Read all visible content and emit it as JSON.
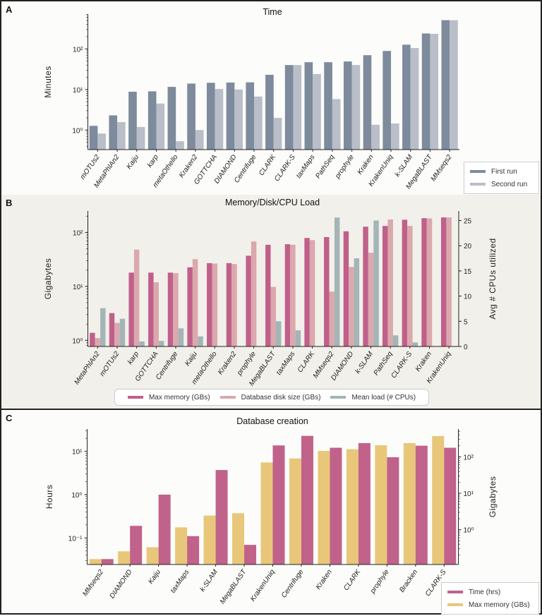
{
  "chart_data": [
    {
      "panel_label": "A",
      "type": "bar",
      "title": "Time",
      "ylabel": "Minutes",
      "yscale": "log",
      "ylim": [
        0.33,
        720
      ],
      "yticks": [
        {
          "value": 1,
          "label": "10⁰"
        },
        {
          "value": 10,
          "label": "10¹"
        },
        {
          "value": 100,
          "label": "10²"
        }
      ],
      "grid": false,
      "legend": "bottom-right",
      "categories": [
        "mOTUs2",
        "MetaPhlAn2",
        "Kaiju",
        "karp",
        "metaOthello",
        "Kraken2",
        "GOTTCHA",
        "DIAMOND",
        "Centrifuge",
        "CLARK",
        "CLARK-S",
        "taxMaps",
        "PathSeq",
        "prophyle",
        "Kraken",
        "KrakenUniq",
        "k-SLAM",
        "MegaBLAST",
        "MMseqs2"
      ],
      "series": [
        {
          "name": "First run",
          "axis": "left",
          "color": "#7d8b9c",
          "values": [
            1.27,
            2.3,
            8.8,
            9.0,
            11.6,
            14,
            14.6,
            14.8,
            15,
            23,
            40,
            47,
            47,
            49,
            70,
            89,
            127,
            240,
            510
          ]
        },
        {
          "name": "Second run",
          "axis": "left",
          "color": "#b9bec9",
          "values": [
            0.82,
            1.57,
            1.19,
            4.5,
            0.53,
            1.0,
            10.3,
            10,
            6.7,
            2.0,
            40,
            24,
            5.8,
            40,
            1.35,
            1.45,
            105,
            235,
            510
          ]
        }
      ]
    },
    {
      "panel_label": "B",
      "type": "bar",
      "title": "Memory/Disk/CPU Load",
      "ylabel": "Gigabytes",
      "ylabel_right": "Avg # CPUs utilized",
      "yscale": "log",
      "ylim": [
        0.77,
        250
      ],
      "yticks": [
        {
          "value": 1,
          "label": "10⁰"
        },
        {
          "value": 10,
          "label": "10¹"
        },
        {
          "value": 100,
          "label": "10²"
        }
      ],
      "y2scale": "linear",
      "y2lim": [
        0,
        26.9
      ],
      "y2ticks": [
        {
          "value": 0,
          "label": "0"
        },
        {
          "value": 5,
          "label": "5"
        },
        {
          "value": 10,
          "label": "10"
        },
        {
          "value": 15,
          "label": "15"
        },
        {
          "value": 20,
          "label": "20"
        },
        {
          "value": 25,
          "label": "25"
        }
      ],
      "grid": false,
      "legend": "bottom-center",
      "categories": [
        "MetaPhlAn2",
        "mOTUs2",
        "karp",
        "GOTTCHA",
        "Centrifuge",
        "Kaiju",
        "metaOthello",
        "Kraken2",
        "prophyle",
        "MegaBLAST",
        "taxMaps",
        "CLARK",
        "MMseqs2",
        "DIAMOND",
        "k-SLAM",
        "PathSeq",
        "CLARK-S",
        "Kraken",
        "KrakenUniq"
      ],
      "series": [
        {
          "name": "Max memory (GBs)",
          "axis": "left",
          "color": "#c0608a",
          "values": [
            1.38,
            3.2,
            18,
            18,
            18,
            22.6,
            27,
            27,
            37,
            59,
            60.5,
            79,
            82,
            105,
            128,
            132,
            172,
            184,
            190
          ]
        },
        {
          "name": "Database disk size (GBs)",
          "axis": "left",
          "color": "#dba8ad",
          "values": [
            1.1,
            2.1,
            48,
            11.9,
            17.6,
            32,
            26.5,
            26,
            68,
            9.8,
            59,
            72,
            8,
            23,
            42,
            174,
            132,
            182,
            190
          ]
        },
        {
          "name": "Mean load (# CPUs)",
          "axis": "right",
          "color": "#a3b5b6",
          "values": [
            7.6,
            5.5,
            1.0,
            1.1,
            3.6,
            2.0,
            0,
            0,
            0,
            5.0,
            3.2,
            0,
            25.6,
            17.5,
            25.0,
            2.2,
            0.8,
            0,
            0
          ]
        }
      ]
    },
    {
      "panel_label": "C",
      "type": "bar",
      "title": "Database creation",
      "ylabel": "Hours",
      "ylabel_right": "Gigabytes",
      "yscale": "log",
      "ylim": [
        0.0243,
        32.8
      ],
      "yticks": [
        {
          "value": 0.1,
          "label": "10⁻¹"
        },
        {
          "value": 1,
          "label": "10⁰"
        },
        {
          "value": 10,
          "label": "10¹"
        }
      ],
      "y2scale": "log",
      "y2lim": [
        0.111,
        578
      ],
      "y2ticks": [
        {
          "value": 1,
          "label": "10⁰"
        },
        {
          "value": 10,
          "label": "10¹"
        },
        {
          "value": 100,
          "label": "10²"
        }
      ],
      "grid": false,
      "legend": "bottom-right",
      "categories": [
        "MMseqs2",
        "DIAMOND",
        "Kaiju",
        "taxMaps",
        "k-SLAM",
        "MegaBLAST",
        "KrakenUniq",
        "Centrifuge",
        "Kraken",
        "CLARK",
        "prophyle",
        "Bracken",
        "CLARK-S"
      ],
      "series": [
        {
          "name": "Max memory (GBs)",
          "axis": "right",
          "color": "#e8c77a",
          "values": [
            0.156,
            0.255,
            0.33,
            1.16,
            2.44,
            2.83,
            70,
            90,
            145,
            161,
            207,
            237,
            370
          ]
        },
        {
          "name": "Time (hrs)",
          "axis": "left",
          "color": "#c1628a",
          "values": [
            0.0324,
            0.19,
            1.0,
            0.11,
            3.7,
            0.069,
            13.7,
            22.8,
            12.1,
            15.5,
            7.3,
            13.5,
            12.1
          ]
        }
      ],
      "legend_order": [
        "Time (hrs)",
        "Max memory (GBs)"
      ]
    }
  ]
}
